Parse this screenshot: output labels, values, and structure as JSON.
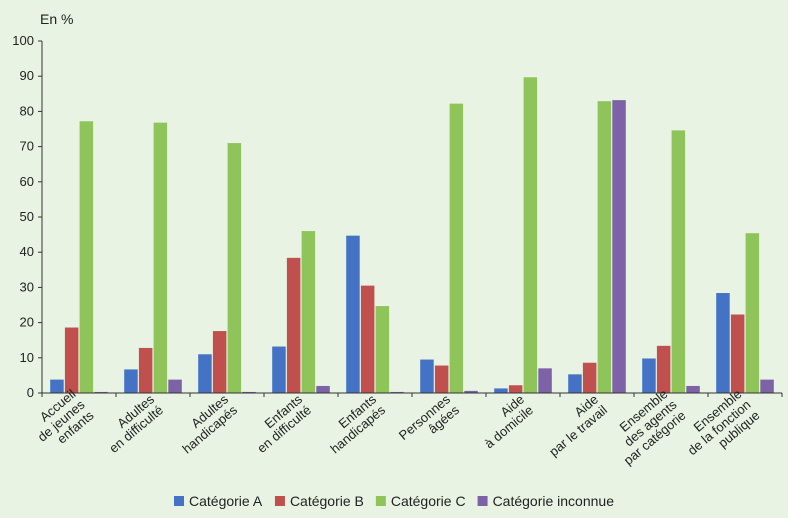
{
  "chart_data": {
    "type": "bar",
    "unit_label": "En  %",
    "ylim": [
      0,
      100
    ],
    "yticks": [
      0,
      10,
      20,
      30,
      40,
      50,
      60,
      70,
      80,
      90,
      100
    ],
    "grid": false,
    "legend_position": "bottom",
    "categories": [
      [
        "Accueil",
        "de jeunes",
        "enfants"
      ],
      [
        "Adultes",
        "en difficulté"
      ],
      [
        "Adultes",
        "handicapés"
      ],
      [
        "Enfants",
        "en difficulté"
      ],
      [
        "Enfants",
        "handicapés"
      ],
      [
        "Personnes",
        "âgées"
      ],
      [
        "Aide",
        "à domicile"
      ],
      [
        "Aide",
        "par le travail"
      ],
      [
        "Ensemble",
        "des agents",
        "par catégorie"
      ],
      [
        "Ensemble",
        "de la fonction",
        "publique"
      ]
    ],
    "series": [
      {
        "name": "Catégorie A",
        "color": "#4472c4",
        "values": [
          3.8,
          6.7,
          11.0,
          13.2,
          44.7,
          9.5,
          1.3,
          5.3,
          9.8,
          28.4
        ]
      },
      {
        "name": "Catégorie B",
        "color": "#c0504d",
        "values": [
          18.6,
          12.8,
          17.6,
          38.4,
          30.5,
          7.8,
          2.2,
          8.6,
          13.4,
          22.3
        ]
      },
      {
        "name": "Catégorie C",
        "color": "#8ec45a",
        "values": [
          77.2,
          76.8,
          71.0,
          46.0,
          24.7,
          82.2,
          89.7,
          82.9,
          74.6,
          45.4
        ]
      },
      {
        "name": "Catégorie inconnue",
        "color": "#7e62a8",
        "values": [
          0.3,
          3.8,
          0.3,
          2.0,
          0.3,
          0.6,
          7.0,
          83.2,
          2.0,
          3.8
        ]
      }
    ]
  }
}
